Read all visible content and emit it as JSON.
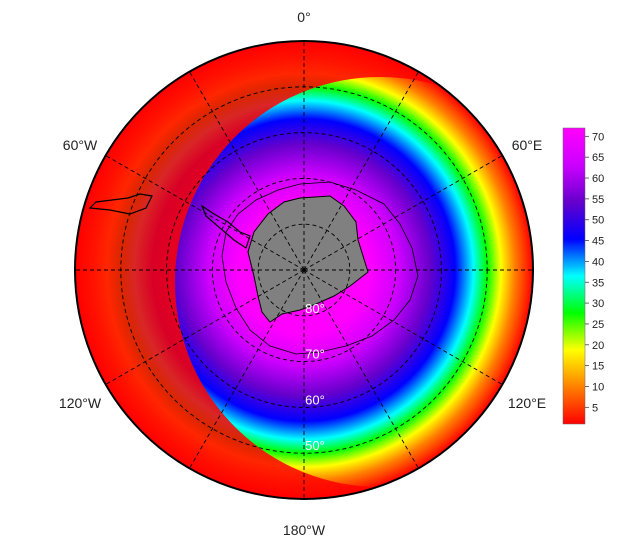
{
  "map": {
    "projection": "south-polar-stereographic",
    "longitude_labels": {
      "top": "0°",
      "upper_left": "60°W",
      "upper_right": "60°E",
      "lower_left": "120°W",
      "lower_right": "120°E",
      "bottom": "180°W"
    },
    "latitude_labels": [
      "80°",
      "70°",
      "60°",
      "50°"
    ],
    "latitude_circles_deg": [
      80,
      70,
      60,
      50
    ],
    "meridian_spacing_deg": 30,
    "land_color": "#808080",
    "coastline_color": "#000000",
    "graticule_color": "#000000"
  },
  "colorbar": {
    "ticks": [
      5,
      10,
      15,
      20,
      25,
      30,
      35,
      40,
      45,
      50,
      55,
      60,
      65,
      70
    ],
    "range": [
      1,
      72
    ],
    "colors": [
      "#ff0000",
      "#ff8000",
      "#ffff00",
      "#00ff00",
      "#00ffff",
      "#0000ff",
      "#6600cc",
      "#cc00ff",
      "#ff00ff"
    ]
  }
}
